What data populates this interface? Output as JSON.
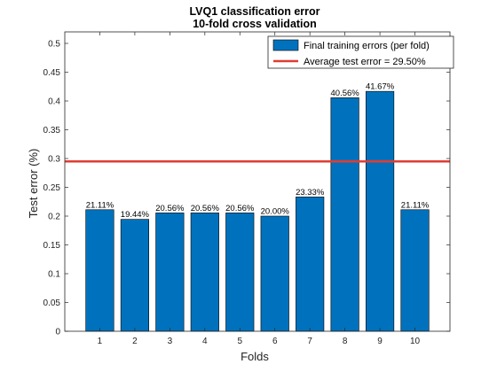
{
  "chart_data": {
    "type": "bar",
    "title": [
      "LVQ1 classification error",
      "10-fold cross validation"
    ],
    "xlabel": "Folds",
    "ylabel": "Test error (%)",
    "categories": [
      "1",
      "2",
      "3",
      "4",
      "5",
      "6",
      "7",
      "8",
      "9",
      "10"
    ],
    "series": [
      {
        "name": "Final training errors (per fold)",
        "values": [
          0.2111,
          0.1944,
          0.2056,
          0.2056,
          0.2056,
          0.2,
          0.2333,
          0.4056,
          0.4167,
          0.2111
        ],
        "data_labels": [
          "21.11%",
          "19.44%",
          "20.56%",
          "20.56%",
          "20.56%",
          "20.00%",
          "23.33%",
          "40.56%",
          "41.67%",
          "21.11%"
        ],
        "color": "#0072BD"
      }
    ],
    "reference_line": {
      "name": "Average test error = 29.50%",
      "value": 0.295,
      "color": "#E03C31"
    },
    "ylim": [
      0,
      0.52
    ],
    "yticks": [
      "0",
      "0.05",
      "0.1",
      "0.15",
      "0.2",
      "0.25",
      "0.3",
      "0.35",
      "0.4",
      "0.45",
      "0.5"
    ],
    "ytick_values": [
      0,
      0.05,
      0.1,
      0.15,
      0.2,
      0.25,
      0.3,
      0.35,
      0.4,
      0.45,
      0.5
    ],
    "xlim": [
      0,
      11
    ],
    "grid": false,
    "legend_position": "top-right"
  }
}
